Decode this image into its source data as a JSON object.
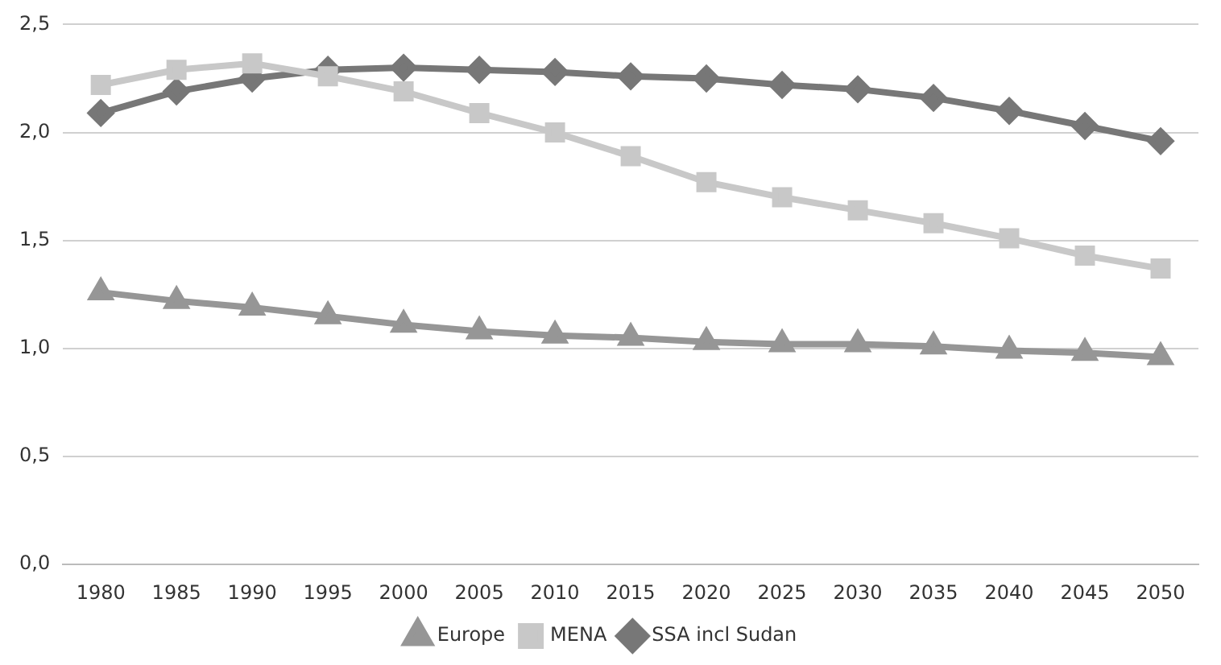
{
  "chart_data": {
    "type": "line",
    "categories": [
      "1980",
      "1985",
      "1990",
      "1995",
      "2000",
      "2005",
      "2010",
      "2015",
      "2020",
      "2025",
      "2030",
      "2035",
      "2040",
      "2045",
      "2050"
    ],
    "series": [
      {
        "name": "SSA incl Sudan",
        "color": "#777777",
        "marker": "diamond",
        "values": [
          2.09,
          2.19,
          2.25,
          2.29,
          2.3,
          2.29,
          2.28,
          2.26,
          2.25,
          2.22,
          2.2,
          2.16,
          2.1,
          2.03,
          1.96
        ]
      },
      {
        "name": "MENA",
        "color": "#c8c8c8",
        "marker": "square",
        "values": [
          2.22,
          2.29,
          2.32,
          2.26,
          2.19,
          2.09,
          2.0,
          1.89,
          1.77,
          1.7,
          1.64,
          1.58,
          1.51,
          1.43,
          1.37
        ]
      },
      {
        "name": "Europe",
        "color": "#969696",
        "marker": "triangle",
        "values": [
          1.26,
          1.22,
          1.19,
          1.15,
          1.11,
          1.08,
          1.06,
          1.05,
          1.03,
          1.02,
          1.02,
          1.01,
          0.99,
          0.98,
          0.96
        ]
      }
    ],
    "ylim": [
      0,
      2.5
    ],
    "yticks": [
      {
        "value": 0,
        "label": "0,0"
      },
      {
        "value": 0.5,
        "label": "0,5"
      },
      {
        "value": 1,
        "label": "1,0"
      },
      {
        "value": 1.5,
        "label": "1,5"
      },
      {
        "value": 2,
        "label": "2,0"
      },
      {
        "value": 2.5,
        "label": "2,5"
      }
    ],
    "grid": "y",
    "legend": "bottom",
    "line_style": "solid"
  }
}
